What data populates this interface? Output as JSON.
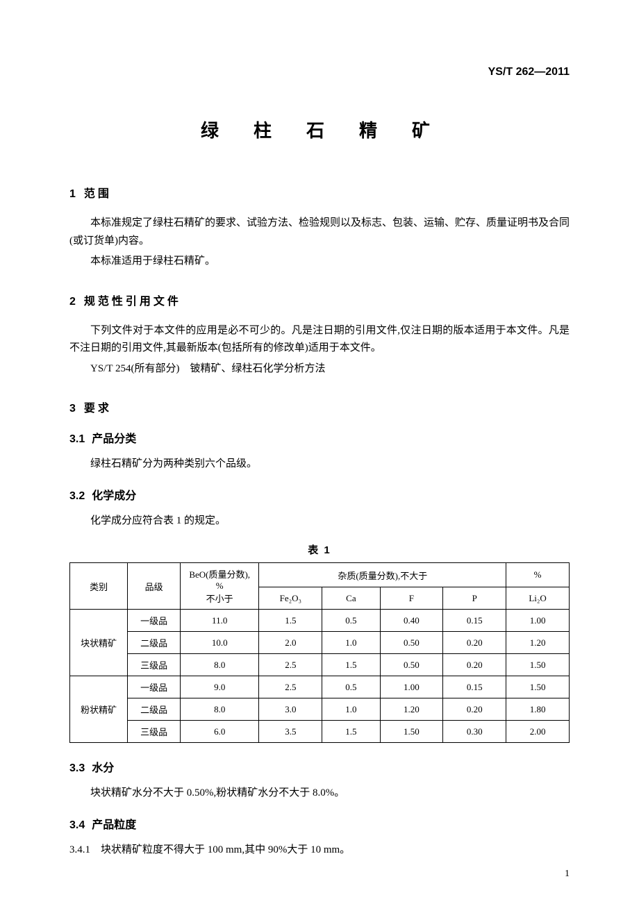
{
  "doc_number": "YS/T 262—2011",
  "title": "绿　柱　石　精　矿",
  "s1": {
    "num": "1",
    "heading": "范围",
    "p1": "本标准规定了绿柱石精矿的要求、试验方法、检验规则以及标志、包装、运输、贮存、质量证明书及合同(或订货单)内容。",
    "p2": "本标准适用于绿柱石精矿。"
  },
  "s2": {
    "num": "2",
    "heading": "规范性引用文件",
    "p1": "下列文件对于本文件的应用是必不可少的。凡是注日期的引用文件,仅注日期的版本适用于本文件。凡是不注日期的引用文件,其最新版本(包括所有的修改单)适用于本文件。",
    "p2": "YS/T 254(所有部分)　铍精矿、绿柱石化学分析方法"
  },
  "s3": {
    "num": "3",
    "heading": "要求",
    "s31": {
      "num": "3.1",
      "heading": "产品分类",
      "p1": "绿柱石精矿分为两种类别六个品级。"
    },
    "s32": {
      "num": "3.2",
      "heading": "化学成分",
      "p1": "化学成分应符合表 1 的规定。"
    },
    "s33": {
      "num": "3.3",
      "heading": "水分",
      "p1": "块状精矿水分不大于 0.50%,粉状精矿水分不大于 8.0%。"
    },
    "s34": {
      "num": "3.4",
      "heading": "产品粒度",
      "s341": "3.4.1　块状精矿粒度不得大于 100 mm,其中 90%大于 10 mm。"
    }
  },
  "table1": {
    "caption": "表 1",
    "head": {
      "cat": "类别",
      "grade": "品级",
      "beo_line1": "BeO(质量分数),",
      "beo_pct": "%",
      "beo_line2": "不小于",
      "imp": "杂质(质量分数),不大于",
      "pct": "%",
      "fe2o3": "Fe₂O₃",
      "ca": "Ca",
      "f": "F",
      "p": "P",
      "li2o": "Li₂O"
    },
    "cat_block": "块状精矿",
    "cat_powder": "粉状精矿",
    "rows": [
      {
        "grade": "一级品",
        "beo": "11.0",
        "fe2o3": "1.5",
        "ca": "0.5",
        "f": "0.40",
        "p": "0.15",
        "li2o": "1.00"
      },
      {
        "grade": "二级品",
        "beo": "10.0",
        "fe2o3": "2.0",
        "ca": "1.0",
        "f": "0.50",
        "p": "0.20",
        "li2o": "1.20"
      },
      {
        "grade": "三级品",
        "beo": "8.0",
        "fe2o3": "2.5",
        "ca": "1.5",
        "f": "0.50",
        "p": "0.20",
        "li2o": "1.50"
      },
      {
        "grade": "一级品",
        "beo": "9.0",
        "fe2o3": "2.5",
        "ca": "0.5",
        "f": "1.00",
        "p": "0.15",
        "li2o": "1.50"
      },
      {
        "grade": "二级品",
        "beo": "8.0",
        "fe2o3": "3.0",
        "ca": "1.0",
        "f": "1.20",
        "p": "0.20",
        "li2o": "1.80"
      },
      {
        "grade": "三级品",
        "beo": "6.0",
        "fe2o3": "3.5",
        "ca": "1.5",
        "f": "1.50",
        "p": "0.30",
        "li2o": "2.00"
      }
    ],
    "col_widths": [
      "11%",
      "10%",
      "15%",
      "12%",
      "11%",
      "12%",
      "12%",
      "12%"
    ]
  },
  "page_number": "1"
}
